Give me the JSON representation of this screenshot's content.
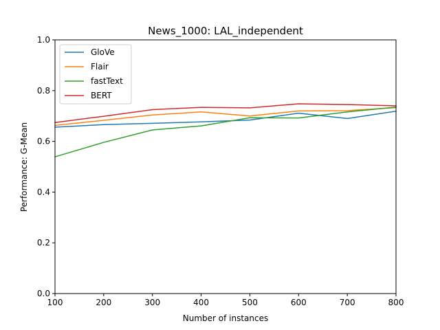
{
  "chart_data": {
    "type": "line",
    "title": "News_1000: LAL_independent",
    "xlabel": "Number of instances",
    "ylabel": "Performance: G-Mean",
    "xlim": [
      100,
      800
    ],
    "ylim": [
      0.0,
      1.0
    ],
    "xticks": [
      "100",
      "200",
      "300",
      "400",
      "500",
      "600",
      "700",
      "800"
    ],
    "yticks": [
      "0.0",
      "0.2",
      "0.4",
      "0.6",
      "0.8",
      "1.0"
    ],
    "grid": false,
    "legend_position": "top-left",
    "x": [
      100,
      200,
      300,
      400,
      500,
      600,
      700,
      800
    ],
    "series": [
      {
        "name": "GloVe",
        "color": "#1f77b4",
        "values": [
          0.656,
          0.666,
          0.671,
          0.677,
          0.684,
          0.711,
          0.69,
          0.719
        ]
      },
      {
        "name": "Flair",
        "color": "#ff7f0e",
        "values": [
          0.663,
          0.683,
          0.704,
          0.716,
          0.7,
          0.72,
          0.721,
          0.733
        ]
      },
      {
        "name": "fastText",
        "color": "#2ca02c",
        "values": [
          0.539,
          0.596,
          0.645,
          0.661,
          0.693,
          0.692,
          0.716,
          0.735
        ]
      },
      {
        "name": "BERT",
        "color": "#d62728",
        "values": [
          0.674,
          0.699,
          0.725,
          0.734,
          0.732,
          0.748,
          0.745,
          0.74
        ]
      }
    ]
  }
}
